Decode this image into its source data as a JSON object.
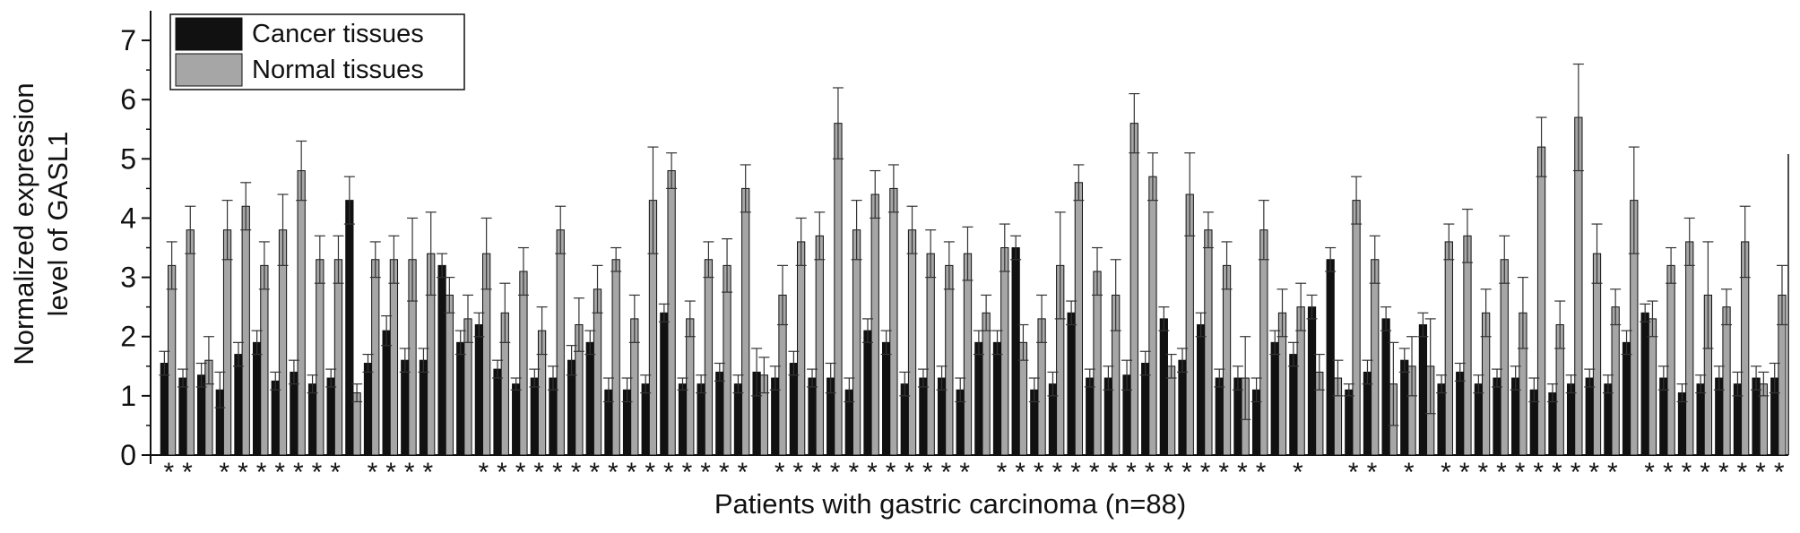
{
  "chart_data": {
    "type": "bar",
    "title": "",
    "xlabel": "Patients with gastric carcinoma (n=88)",
    "ylabel": "Normalized expression level of GASL1",
    "ylabel_lines": [
      "Normalized expression",
      "level of GASL1"
    ],
    "ylim": [
      0,
      7.5
    ],
    "yticks": [
      0,
      1,
      2,
      3,
      4,
      5,
      6,
      7
    ],
    "grid": false,
    "legend_position": "top-left",
    "significance_marker": "*",
    "series": [
      {
        "name": "Cancer tissues",
        "color": "#111111",
        "values": [
          1.55,
          1.3,
          1.35,
          1.1,
          1.7,
          1.9,
          1.25,
          1.4,
          1.2,
          1.3,
          4.3,
          1.55,
          2.1,
          1.6,
          1.6,
          3.2,
          1.9,
          2.2,
          1.45,
          1.2,
          1.3,
          1.3,
          1.6,
          1.9,
          1.1,
          1.1,
          1.2,
          2.4,
          1.2,
          1.2,
          1.4,
          1.2,
          1.4,
          1.3,
          1.55,
          1.3,
          1.3,
          1.1,
          2.1,
          1.9,
          1.2,
          1.3,
          1.3,
          1.1,
          1.9,
          1.9,
          3.5,
          1.1,
          1.2,
          2.4,
          1.3,
          1.3,
          1.35,
          1.55,
          2.3,
          1.6,
          2.2,
          1.3,
          1.3,
          1.1,
          1.9,
          1.7,
          2.5,
          3.3,
          1.1,
          1.4,
          2.3,
          1.6,
          2.2,
          1.2,
          1.4,
          1.2,
          1.3,
          1.3,
          1.1,
          1.05,
          1.2,
          1.3,
          1.2,
          1.9,
          2.4,
          1.3,
          1.05,
          1.2,
          1.3,
          1.2,
          1.3,
          1.3
        ]
      },
      {
        "name": "Normal tissues",
        "color": "#a6a6a6",
        "values": [
          3.2,
          3.8,
          1.6,
          3.8,
          4.2,
          3.2,
          3.8,
          4.8,
          3.3,
          3.3,
          1.05,
          3.3,
          3.3,
          3.3,
          3.4,
          2.7,
          2.3,
          3.4,
          2.4,
          3.1,
          2.1,
          3.8,
          2.2,
          2.8,
          3.3,
          2.3,
          4.3,
          4.8,
          2.3,
          3.3,
          3.2,
          4.5,
          1.35,
          2.7,
          3.6,
          3.7,
          5.6,
          3.8,
          4.4,
          4.5,
          3.8,
          3.4,
          3.2,
          3.4,
          2.4,
          3.5,
          1.9,
          2.3,
          3.2,
          4.6,
          3.1,
          2.7,
          5.6,
          4.7,
          1.5,
          4.4,
          3.8,
          3.2,
          1.3,
          3.8,
          2.4,
          2.5,
          1.4,
          1.3,
          4.3,
          3.3,
          1.2,
          1.5,
          1.5,
          3.6,
          3.7,
          2.4,
          3.3,
          2.4,
          5.2,
          2.2,
          5.7,
          3.4,
          2.5,
          4.3,
          2.3,
          3.2,
          3.6,
          2.7,
          2.5,
          3.6,
          1.2,
          2.7
        ]
      }
    ],
    "cancer_err": [
      0.2,
      0.15,
      0.2,
      0.3,
      0.2,
      0.2,
      0.15,
      0.2,
      0.15,
      0.15,
      0.4,
      0.15,
      0.25,
      0.2,
      0.2,
      0.2,
      0.2,
      0.2,
      0.15,
      0.1,
      0.15,
      0.2,
      0.25,
      0.2,
      0.2,
      0.2,
      0.15,
      0.15,
      0.1,
      0.15,
      0.15,
      0.15,
      0.4,
      0.2,
      0.2,
      0.15,
      0.25,
      0.2,
      0.2,
      0.2,
      0.2,
      0.15,
      0.2,
      0.2,
      0.2,
      0.2,
      0.2,
      0.2,
      0.2,
      0.2,
      0.15,
      0.2,
      0.25,
      0.2,
      0.2,
      0.2,
      0.2,
      0.15,
      0.2,
      0.2,
      0.2,
      0.2,
      0.2,
      0.2,
      0.1,
      0.2,
      0.2,
      0.2,
      0.2,
      0.15,
      0.15,
      0.15,
      0.15,
      0.2,
      0.2,
      0.15,
      0.15,
      0.15,
      0.15,
      0.2,
      0.15,
      0.2,
      0.15,
      0.15,
      0.2,
      0.2,
      0.2,
      0.25
    ],
    "normal_err": [
      0.4,
      0.4,
      0.4,
      0.5,
      0.4,
      0.4,
      0.6,
      0.5,
      0.4,
      0.4,
      0.15,
      0.3,
      0.4,
      0.7,
      0.7,
      0.3,
      0.4,
      0.6,
      0.5,
      0.4,
      0.4,
      0.4,
      0.45,
      0.4,
      0.2,
      0.4,
      0.9,
      0.3,
      0.3,
      0.3,
      0.45,
      0.4,
      0.3,
      0.5,
      0.4,
      0.4,
      0.6,
      0.5,
      0.4,
      0.4,
      0.4,
      0.4,
      0.4,
      0.45,
      0.3,
      0.4,
      0.3,
      0.4,
      0.9,
      0.3,
      0.4,
      0.6,
      0.5,
      0.4,
      0.2,
      0.7,
      0.3,
      0.4,
      0.7,
      0.5,
      0.4,
      0.4,
      0.3,
      0.3,
      0.4,
      0.4,
      0.7,
      0.5,
      0.8,
      0.3,
      0.45,
      0.4,
      0.4,
      0.6,
      0.5,
      0.4,
      0.9,
      0.5,
      0.3,
      0.9,
      0.3,
      0.3,
      0.4,
      0.9,
      0.3,
      0.6,
      0.2,
      0.5
    ],
    "significant": [
      1,
      1,
      0,
      1,
      1,
      1,
      1,
      1,
      1,
      1,
      0,
      1,
      1,
      1,
      1,
      0,
      0,
      1,
      1,
      1,
      1,
      1,
      1,
      1,
      1,
      1,
      1,
      1,
      1,
      1,
      1,
      1,
      0,
      1,
      1,
      1,
      1,
      1,
      1,
      1,
      1,
      1,
      1,
      1,
      0,
      1,
      1,
      1,
      1,
      1,
      1,
      1,
      1,
      1,
      1,
      1,
      1,
      1,
      1,
      1,
      0,
      1,
      0,
      0,
      1,
      1,
      0,
      1,
      0,
      1,
      1,
      1,
      1,
      1,
      1,
      1,
      1,
      1,
      1,
      0,
      1,
      1,
      1,
      1,
      1,
      1,
      1,
      1
    ],
    "legend": [
      "Cancer tissues",
      "Normal tissues"
    ]
  }
}
